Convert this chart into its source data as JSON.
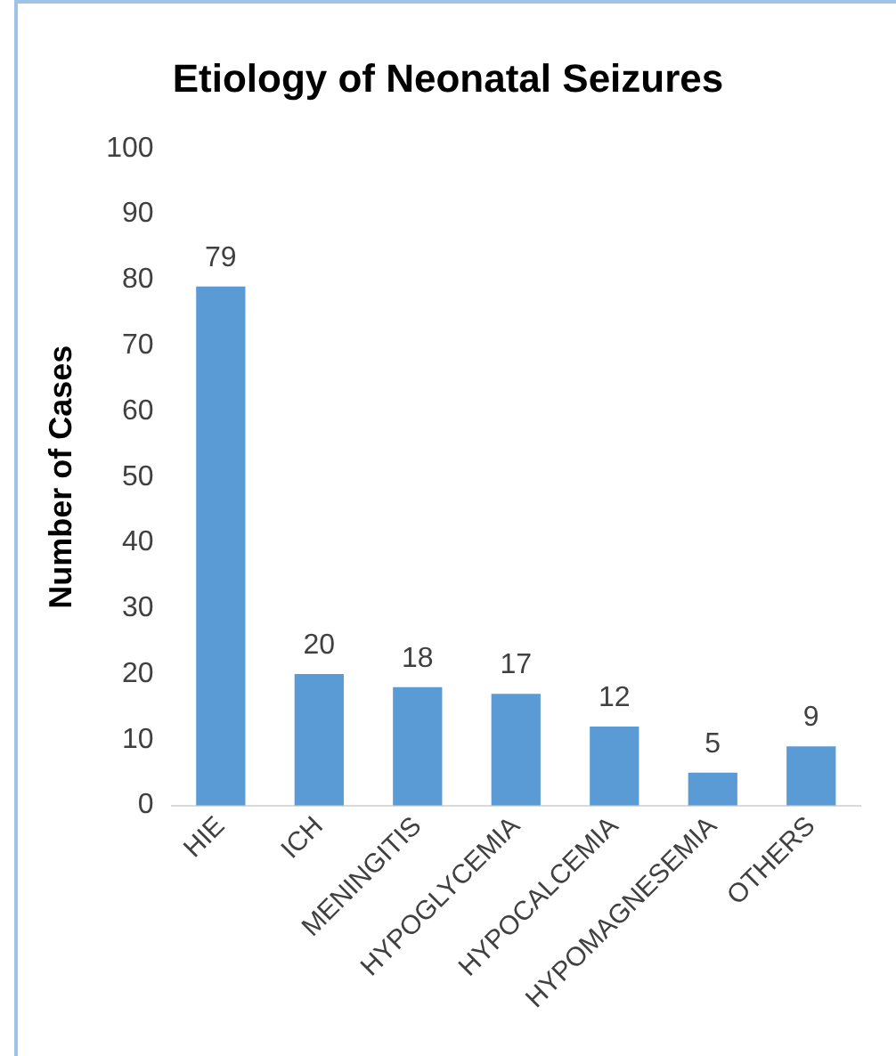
{
  "chart_data": {
    "type": "bar",
    "title": "Etiology of Neonatal Seizures",
    "ylabel": "Number of Cases",
    "categories": [
      "HIE",
      "ICH",
      "MENINGITIS",
      "HYPOGLYCEMIA",
      "HYPOCALCEMIA",
      "HYPOMAGNESEMIA",
      "OTHERS"
    ],
    "values": [
      79,
      20,
      18,
      17,
      12,
      5,
      9
    ],
    "color": "#5b9bd5",
    "ylim": [
      0,
      100
    ],
    "yticks": [
      0,
      10,
      20,
      30,
      40,
      50,
      60,
      70,
      80,
      90,
      100
    ],
    "grid": false,
    "data_labels": true,
    "legend": false
  }
}
